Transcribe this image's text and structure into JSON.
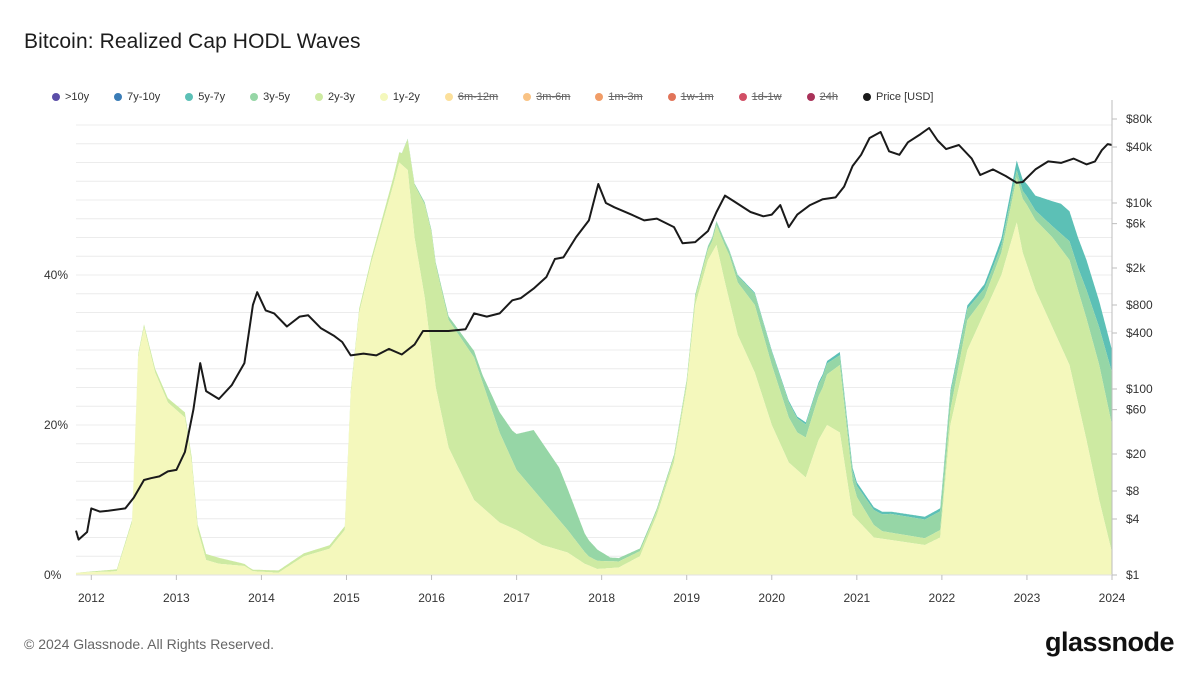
{
  "title": "Bitcoin: Realized Cap HODL Waves",
  "legend": [
    {
      "label": ">10y",
      "color": "#5b4ea8",
      "hidden": false
    },
    {
      "label": "7y-10y",
      "color": "#3a7cb6",
      "hidden": false
    },
    {
      "label": "5y-7y",
      "color": "#5cc0b6",
      "hidden": false
    },
    {
      "label": "3y-5y",
      "color": "#96d6a6",
      "hidden": false
    },
    {
      "label": "2y-3y",
      "color": "#cdeaa2",
      "hidden": false
    },
    {
      "label": "1y-2y",
      "color": "#f4f8bc",
      "hidden": false
    },
    {
      "label": "6m-12m",
      "color": "#fbdb8a",
      "hidden": true
    },
    {
      "label": "3m-6m",
      "color": "#f8b870",
      "hidden": true
    },
    {
      "label": "1m-3m",
      "color": "#ef8c4c",
      "hidden": true
    },
    {
      "label": "1w-1m",
      "color": "#dc5c3c",
      "hidden": true
    },
    {
      "label": "1d-1w",
      "color": "#c9304a",
      "hidden": true
    },
    {
      "label": "24h",
      "color": "#9a0e3c",
      "hidden": true
    },
    {
      "label": "Price [USD]",
      "color": "#1a1a1a",
      "hidden": false
    }
  ],
  "chart_data": {
    "type": "area",
    "title": "Bitcoin: Realized Cap HODL Waves",
    "stacked": true,
    "y_left_ticks": [
      "0%",
      "20%",
      "40%"
    ],
    "y_left_range": [
      0,
      62
    ],
    "y_right_ticks": [
      "$1",
      "$4",
      "$8",
      "$20",
      "$60",
      "$100",
      "$400",
      "$800",
      "$2k",
      "$6k",
      "$10k",
      "$40k",
      "$80k"
    ],
    "y_right_values": [
      1,
      4,
      8,
      20,
      60,
      100,
      400,
      800,
      2000,
      6000,
      10000,
      40000,
      80000
    ],
    "y_right_scale": "log",
    "x_ticks": [
      "2012",
      "2013",
      "2014",
      "2015",
      "2016",
      "2017",
      "2018",
      "2019",
      "2020",
      "2021",
      "2022",
      "2023",
      "2024"
    ],
    "x_range": [
      2011.82,
      2024.0
    ],
    "grid": "horizontal",
    "legend_position": "top",
    "series": [
      {
        "name": "1y-2y",
        "color": "#f4f8bc",
        "points": [
          [
            2011.82,
            0.3
          ],
          [
            2012.3,
            0.5
          ],
          [
            2012.48,
            7
          ],
          [
            2012.55,
            29
          ],
          [
            2012.62,
            33
          ],
          [
            2012.75,
            27
          ],
          [
            2012.9,
            23
          ],
          [
            2013.1,
            21
          ],
          [
            2013.18,
            15
          ],
          [
            2013.25,
            6
          ],
          [
            2013.35,
            2
          ],
          [
            2013.5,
            1.5
          ],
          [
            2013.8,
            1.2
          ],
          [
            2013.9,
            0.5
          ],
          [
            2014.2,
            0.3
          ],
          [
            2014.5,
            2.5
          ],
          [
            2014.8,
            3.5
          ],
          [
            2014.98,
            6
          ],
          [
            2015.05,
            24
          ],
          [
            2015.15,
            35
          ],
          [
            2015.3,
            42
          ],
          [
            2015.45,
            48
          ],
          [
            2015.55,
            52
          ],
          [
            2015.62,
            55
          ],
          [
            2015.72,
            54
          ],
          [
            2015.8,
            45
          ],
          [
            2015.92,
            37
          ],
          [
            2016.05,
            25
          ],
          [
            2016.2,
            17
          ],
          [
            2016.5,
            10
          ],
          [
            2016.8,
            7
          ],
          [
            2017.0,
            6
          ],
          [
            2017.3,
            4
          ],
          [
            2017.6,
            3
          ],
          [
            2017.8,
            1.5
          ],
          [
            2017.95,
            0.8
          ],
          [
            2018.2,
            1
          ],
          [
            2018.45,
            2.5
          ],
          [
            2018.65,
            8
          ],
          [
            2018.85,
            15
          ],
          [
            2019.0,
            25
          ],
          [
            2019.1,
            36
          ],
          [
            2019.25,
            42
          ],
          [
            2019.35,
            44
          ],
          [
            2019.45,
            39
          ],
          [
            2019.6,
            32
          ],
          [
            2019.8,
            27
          ],
          [
            2020.0,
            20
          ],
          [
            2020.2,
            15
          ],
          [
            2020.4,
            13
          ],
          [
            2020.55,
            18
          ],
          [
            2020.65,
            20
          ],
          [
            2020.8,
            19
          ],
          [
            2020.95,
            8
          ],
          [
            2021.2,
            5
          ],
          [
            2021.5,
            4.5
          ],
          [
            2021.8,
            4
          ],
          [
            2021.98,
            5
          ],
          [
            2022.1,
            20
          ],
          [
            2022.3,
            30
          ],
          [
            2022.5,
            35
          ],
          [
            2022.7,
            40
          ],
          [
            2022.88,
            47
          ],
          [
            2022.95,
            43
          ],
          [
            2023.1,
            38
          ],
          [
            2023.3,
            33
          ],
          [
            2023.5,
            28
          ],
          [
            2023.7,
            18
          ],
          [
            2023.85,
            10
          ],
          [
            2024.0,
            3
          ]
        ]
      },
      {
        "name": "2y-3y",
        "color": "#cdeaa2",
        "points": [
          [
            2011.82,
            0
          ],
          [
            2013.3,
            0.8
          ],
          [
            2013.5,
            0.8
          ],
          [
            2013.85,
            0.2
          ],
          [
            2014.5,
            0.4
          ],
          [
            2014.98,
            0.5
          ],
          [
            2015.3,
            0.6
          ],
          [
            2015.55,
            1
          ],
          [
            2015.65,
            1.5
          ],
          [
            2015.8,
            7
          ],
          [
            2016.0,
            16
          ],
          [
            2016.2,
            17
          ],
          [
            2016.5,
            19
          ],
          [
            2016.8,
            12
          ],
          [
            2017.0,
            8
          ],
          [
            2017.3,
            6
          ],
          [
            2017.6,
            3
          ],
          [
            2017.85,
            1.2
          ],
          [
            2018.2,
            0.8
          ],
          [
            2018.6,
            0.6
          ],
          [
            2019.0,
            0.8
          ],
          [
            2019.3,
            1.5
          ],
          [
            2019.5,
            6
          ],
          [
            2019.8,
            9
          ],
          [
            2020.0,
            8
          ],
          [
            2020.3,
            5
          ],
          [
            2020.6,
            6
          ],
          [
            2020.8,
            9
          ],
          [
            2021.0,
            3
          ],
          [
            2021.3,
            1
          ],
          [
            2021.8,
            0.9
          ],
          [
            2022.0,
            1
          ],
          [
            2022.3,
            4
          ],
          [
            2022.5,
            2
          ],
          [
            2022.7,
            3
          ],
          [
            2023.0,
            8
          ],
          [
            2023.3,
            12
          ],
          [
            2023.6,
            15
          ],
          [
            2023.85,
            18
          ],
          [
            2024.0,
            17
          ]
        ]
      },
      {
        "name": "3y-5y",
        "color": "#96d6a6",
        "points": [
          [
            2011.82,
            0
          ],
          [
            2015.6,
            0
          ],
          [
            2015.8,
            0.2
          ],
          [
            2016.2,
            0.5
          ],
          [
            2016.6,
            1
          ],
          [
            2016.95,
            4
          ],
          [
            2017.2,
            8
          ],
          [
            2017.5,
            7
          ],
          [
            2017.8,
            2.5
          ],
          [
            2018.1,
            0.5
          ],
          [
            2018.6,
            0.3
          ],
          [
            2019.0,
            0.3
          ],
          [
            2019.5,
            0.6
          ],
          [
            2019.8,
            1.5
          ],
          [
            2020.2,
            2
          ],
          [
            2020.6,
            1.5
          ],
          [
            2020.9,
            1.2
          ],
          [
            2021.0,
            1.5
          ],
          [
            2021.4,
            2.5
          ],
          [
            2021.8,
            2.5
          ],
          [
            2022.0,
            2.5
          ],
          [
            2022.3,
            1.5
          ],
          [
            2022.6,
            1
          ],
          [
            2022.9,
            1
          ],
          [
            2023.3,
            1.5
          ],
          [
            2023.6,
            3
          ],
          [
            2023.85,
            5
          ],
          [
            2024.0,
            7
          ]
        ]
      },
      {
        "name": "5y-7y",
        "color": "#5cc0b6",
        "points": [
          [
            2011.82,
            0
          ],
          [
            2019.0,
            0
          ],
          [
            2019.5,
            0.1
          ],
          [
            2020.0,
            0.2
          ],
          [
            2020.6,
            0.3
          ],
          [
            2020.9,
            0.5
          ],
          [
            2021.4,
            0.3
          ],
          [
            2022.0,
            0.4
          ],
          [
            2022.4,
            0.5
          ],
          [
            2022.8,
            1
          ],
          [
            2023.1,
            2
          ],
          [
            2023.4,
            4
          ],
          [
            2023.7,
            4
          ],
          [
            2024.0,
            3
          ]
        ]
      },
      {
        "name": "7y-10y",
        "color": "#3a7cb6",
        "points": [
          [
            2011.82,
            0
          ],
          [
            2023.0,
            0
          ],
          [
            2024.0,
            0
          ]
        ]
      },
      {
        "name": ">10y",
        "color": "#5b4ea8",
        "points": [
          [
            2011.82,
            0
          ],
          [
            2023.0,
            0
          ],
          [
            2024.0,
            0
          ]
        ]
      }
    ],
    "price": {
      "name": "Price [USD]",
      "color": "#1a1a1a",
      "points": [
        [
          2011.82,
          3
        ],
        [
          2011.85,
          2.4
        ],
        [
          2011.95,
          2.9
        ],
        [
          2012.0,
          5.2
        ],
        [
          2012.1,
          4.8
        ],
        [
          2012.2,
          4.9
        ],
        [
          2012.4,
          5.2
        ],
        [
          2012.5,
          6.8
        ],
        [
          2012.62,
          10.5
        ],
        [
          2012.7,
          11
        ],
        [
          2012.8,
          11.5
        ],
        [
          2012.9,
          13
        ],
        [
          2013.0,
          13.5
        ],
        [
          2013.1,
          21
        ],
        [
          2013.2,
          60
        ],
        [
          2013.28,
          190
        ],
        [
          2013.35,
          95
        ],
        [
          2013.5,
          78
        ],
        [
          2013.65,
          110
        ],
        [
          2013.8,
          190
        ],
        [
          2013.9,
          800
        ],
        [
          2013.95,
          1100
        ],
        [
          2014.05,
          700
        ],
        [
          2014.15,
          650
        ],
        [
          2014.3,
          470
        ],
        [
          2014.45,
          600
        ],
        [
          2014.55,
          620
        ],
        [
          2014.7,
          450
        ],
        [
          2014.85,
          375
        ],
        [
          2014.95,
          320
        ],
        [
          2015.05,
          230
        ],
        [
          2015.2,
          240
        ],
        [
          2015.35,
          230
        ],
        [
          2015.5,
          270
        ],
        [
          2015.65,
          235
        ],
        [
          2015.8,
          300
        ],
        [
          2015.9,
          420
        ],
        [
          2016.05,
          420
        ],
        [
          2016.2,
          420
        ],
        [
          2016.4,
          440
        ],
        [
          2016.5,
          650
        ],
        [
          2016.65,
          600
        ],
        [
          2016.8,
          650
        ],
        [
          2016.95,
          900
        ],
        [
          2017.05,
          950
        ],
        [
          2017.2,
          1200
        ],
        [
          2017.35,
          1600
        ],
        [
          2017.45,
          2500
        ],
        [
          2017.55,
          2600
        ],
        [
          2017.7,
          4300
        ],
        [
          2017.85,
          6500
        ],
        [
          2017.96,
          16000
        ],
        [
          2018.05,
          10000
        ],
        [
          2018.15,
          9000
        ],
        [
          2018.35,
          7500
        ],
        [
          2018.5,
          6500
        ],
        [
          2018.65,
          6800
        ],
        [
          2018.85,
          5500
        ],
        [
          2018.95,
          3700
        ],
        [
          2019.1,
          3800
        ],
        [
          2019.25,
          5000
        ],
        [
          2019.35,
          8000
        ],
        [
          2019.45,
          12000
        ],
        [
          2019.55,
          10500
        ],
        [
          2019.75,
          8000
        ],
        [
          2019.9,
          7200
        ],
        [
          2020.0,
          7500
        ],
        [
          2020.1,
          9500
        ],
        [
          2020.2,
          5500
        ],
        [
          2020.3,
          7500
        ],
        [
          2020.45,
          9500
        ],
        [
          2020.6,
          11000
        ],
        [
          2020.75,
          11500
        ],
        [
          2020.85,
          15000
        ],
        [
          2020.95,
          25000
        ],
        [
          2021.05,
          33000
        ],
        [
          2021.15,
          50000
        ],
        [
          2021.28,
          58000
        ],
        [
          2021.38,
          36000
        ],
        [
          2021.5,
          33000
        ],
        [
          2021.6,
          45000
        ],
        [
          2021.75,
          55000
        ],
        [
          2021.85,
          64000
        ],
        [
          2021.95,
          47000
        ],
        [
          2022.05,
          38000
        ],
        [
          2022.2,
          42000
        ],
        [
          2022.35,
          30000
        ],
        [
          2022.45,
          20000
        ],
        [
          2022.6,
          23000
        ],
        [
          2022.75,
          19500
        ],
        [
          2022.88,
          16500
        ],
        [
          2022.95,
          16800
        ],
        [
          2023.1,
          23000
        ],
        [
          2023.25,
          28000
        ],
        [
          2023.4,
          27000
        ],
        [
          2023.55,
          30000
        ],
        [
          2023.7,
          26000
        ],
        [
          2023.8,
          28000
        ],
        [
          2023.88,
          37000
        ],
        [
          2023.95,
          43000
        ],
        [
          2024.0,
          42000
        ]
      ]
    }
  },
  "footer": {
    "copyright": "© 2024 Glassnode. All Rights Reserved.",
    "brand": "glassnode"
  }
}
